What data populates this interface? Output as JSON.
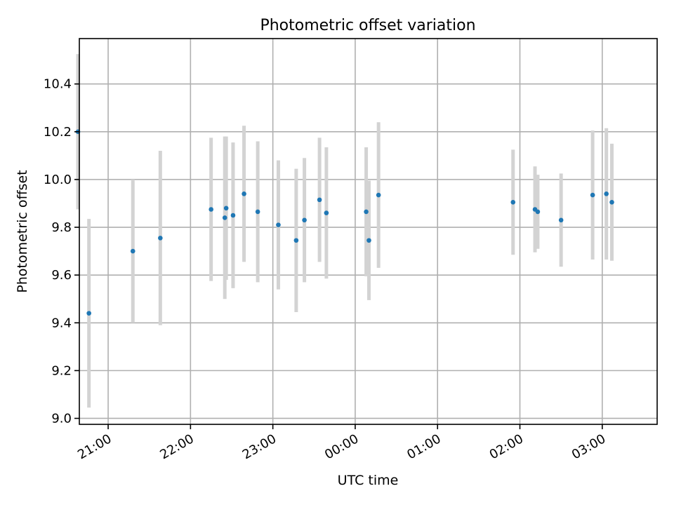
{
  "chart_data": {
    "type": "scatter",
    "title": "Photometric offset variation",
    "xlabel": "UTC time",
    "ylabel": "Photometric offset",
    "x_is_time_of_day": true,
    "xlim": [
      "20:39",
      "03:40"
    ],
    "ylim": [
      8.975,
      10.59
    ],
    "x_ticks": [
      "21:00",
      "22:00",
      "23:00",
      "00:00",
      "01:00",
      "02:00",
      "03:00"
    ],
    "y_ticks": [
      9.0,
      9.2,
      9.4,
      9.6,
      9.8,
      10.0,
      10.2,
      10.4
    ],
    "y_tick_labels": [
      "9.0",
      "9.2",
      "9.4",
      "9.6",
      "9.8",
      "10.0",
      "10.2",
      "10.4"
    ],
    "grid": true,
    "series": [
      {
        "color": "#1f77b4",
        "errorbar_color": "#d3d3d3",
        "points": [
          {
            "x": "20:38",
            "y": 10.2,
            "yerr": 0.325
          },
          {
            "x": "20:46",
            "y": 9.44,
            "yerr": 0.395
          },
          {
            "x": "21:18",
            "y": 9.7,
            "yerr": 0.3
          },
          {
            "x": "21:38",
            "y": 9.755,
            "yerr": 0.365
          },
          {
            "x": "22:15",
            "y": 9.875,
            "yerr": 0.3
          },
          {
            "x": "22:25",
            "y": 9.84,
            "yerr": 0.34
          },
          {
            "x": "22:26",
            "y": 9.88,
            "yerr": 0.3
          },
          {
            "x": "22:31",
            "y": 9.85,
            "yerr": 0.305
          },
          {
            "x": "22:39",
            "y": 9.94,
            "yerr": 0.285
          },
          {
            "x": "22:49",
            "y": 9.865,
            "yerr": 0.295
          },
          {
            "x": "23:04",
            "y": 9.81,
            "yerr": 0.27
          },
          {
            "x": "23:17",
            "y": 9.745,
            "yerr": 0.3
          },
          {
            "x": "23:23",
            "y": 9.83,
            "yerr": 0.26
          },
          {
            "x": "23:34",
            "y": 9.915,
            "yerr": 0.26
          },
          {
            "x": "23:39",
            "y": 9.86,
            "yerr": 0.275
          },
          {
            "x": "00:08",
            "y": 9.865,
            "yerr": 0.27
          },
          {
            "x": "00:10",
            "y": 9.745,
            "yerr": 0.25
          },
          {
            "x": "00:17",
            "y": 9.935,
            "yerr": 0.305
          },
          {
            "x": "01:55",
            "y": 9.905,
            "yerr": 0.22
          },
          {
            "x": "02:11",
            "y": 9.875,
            "yerr": 0.18
          },
          {
            "x": "02:13",
            "y": 9.865,
            "yerr": 0.155
          },
          {
            "x": "02:30",
            "y": 9.83,
            "yerr": 0.195
          },
          {
            "x": "02:53",
            "y": 9.935,
            "yerr": 0.27
          },
          {
            "x": "03:03",
            "y": 9.94,
            "yerr": 0.275
          },
          {
            "x": "03:07",
            "y": 9.905,
            "yerr": 0.245
          }
        ]
      }
    ]
  }
}
